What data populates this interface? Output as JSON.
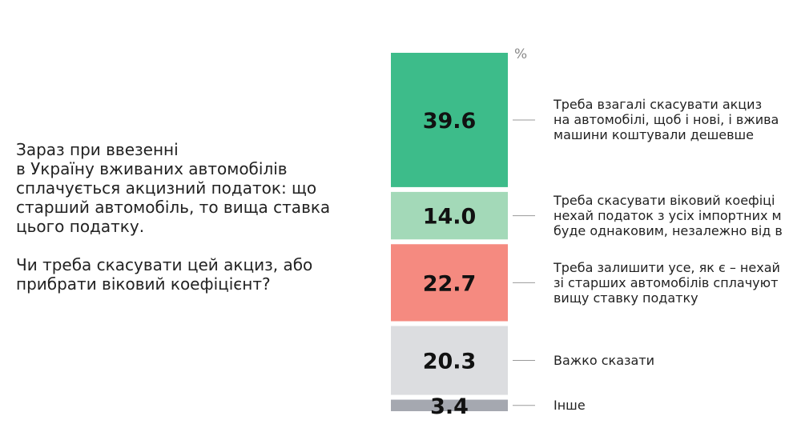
{
  "question": {
    "paragraph1": "Зараз при ввезенні\nв Україну вживаних автомобілів\nсплачується акцизний податок: що\nстарший автомобіль, то вища ставка\nцього податку.",
    "paragraph2": "Чи треба скасувати цей акциз, або\nприбрати віковий коефіцієнт?"
  },
  "chart_data": {
    "type": "bar",
    "stacked": true,
    "orientation": "vertical",
    "unit": "%",
    "total": 100,
    "segments": [
      {
        "value": 39.6,
        "value_label": "39.6",
        "label": "Треба взагалі скасувати акциз\nна автомобілі, щоб і нові, і вжива\nмашини коштували дешевше",
        "color": "#3dbc8a"
      },
      {
        "value": 14.0,
        "value_label": "14.0",
        "label": "Треба скасувати віковий коефіці\nнехай податок з усіх імпортних м\nбуде однаковим, незалежно від в",
        "color": "#a3d9b8"
      },
      {
        "value": 22.7,
        "value_label": "22.7",
        "label": "Треба залишити усе, як є – нехай\nзі старших автомобілів сплачуют\nвищу ставку податку",
        "color": "#f58a80"
      },
      {
        "value": 20.3,
        "value_label": "20.3",
        "label": "Важко сказати",
        "color": "#dcdde0"
      },
      {
        "value": 3.4,
        "value_label": "3.4",
        "label": "Інше",
        "color": "#a5a8b0"
      }
    ]
  }
}
